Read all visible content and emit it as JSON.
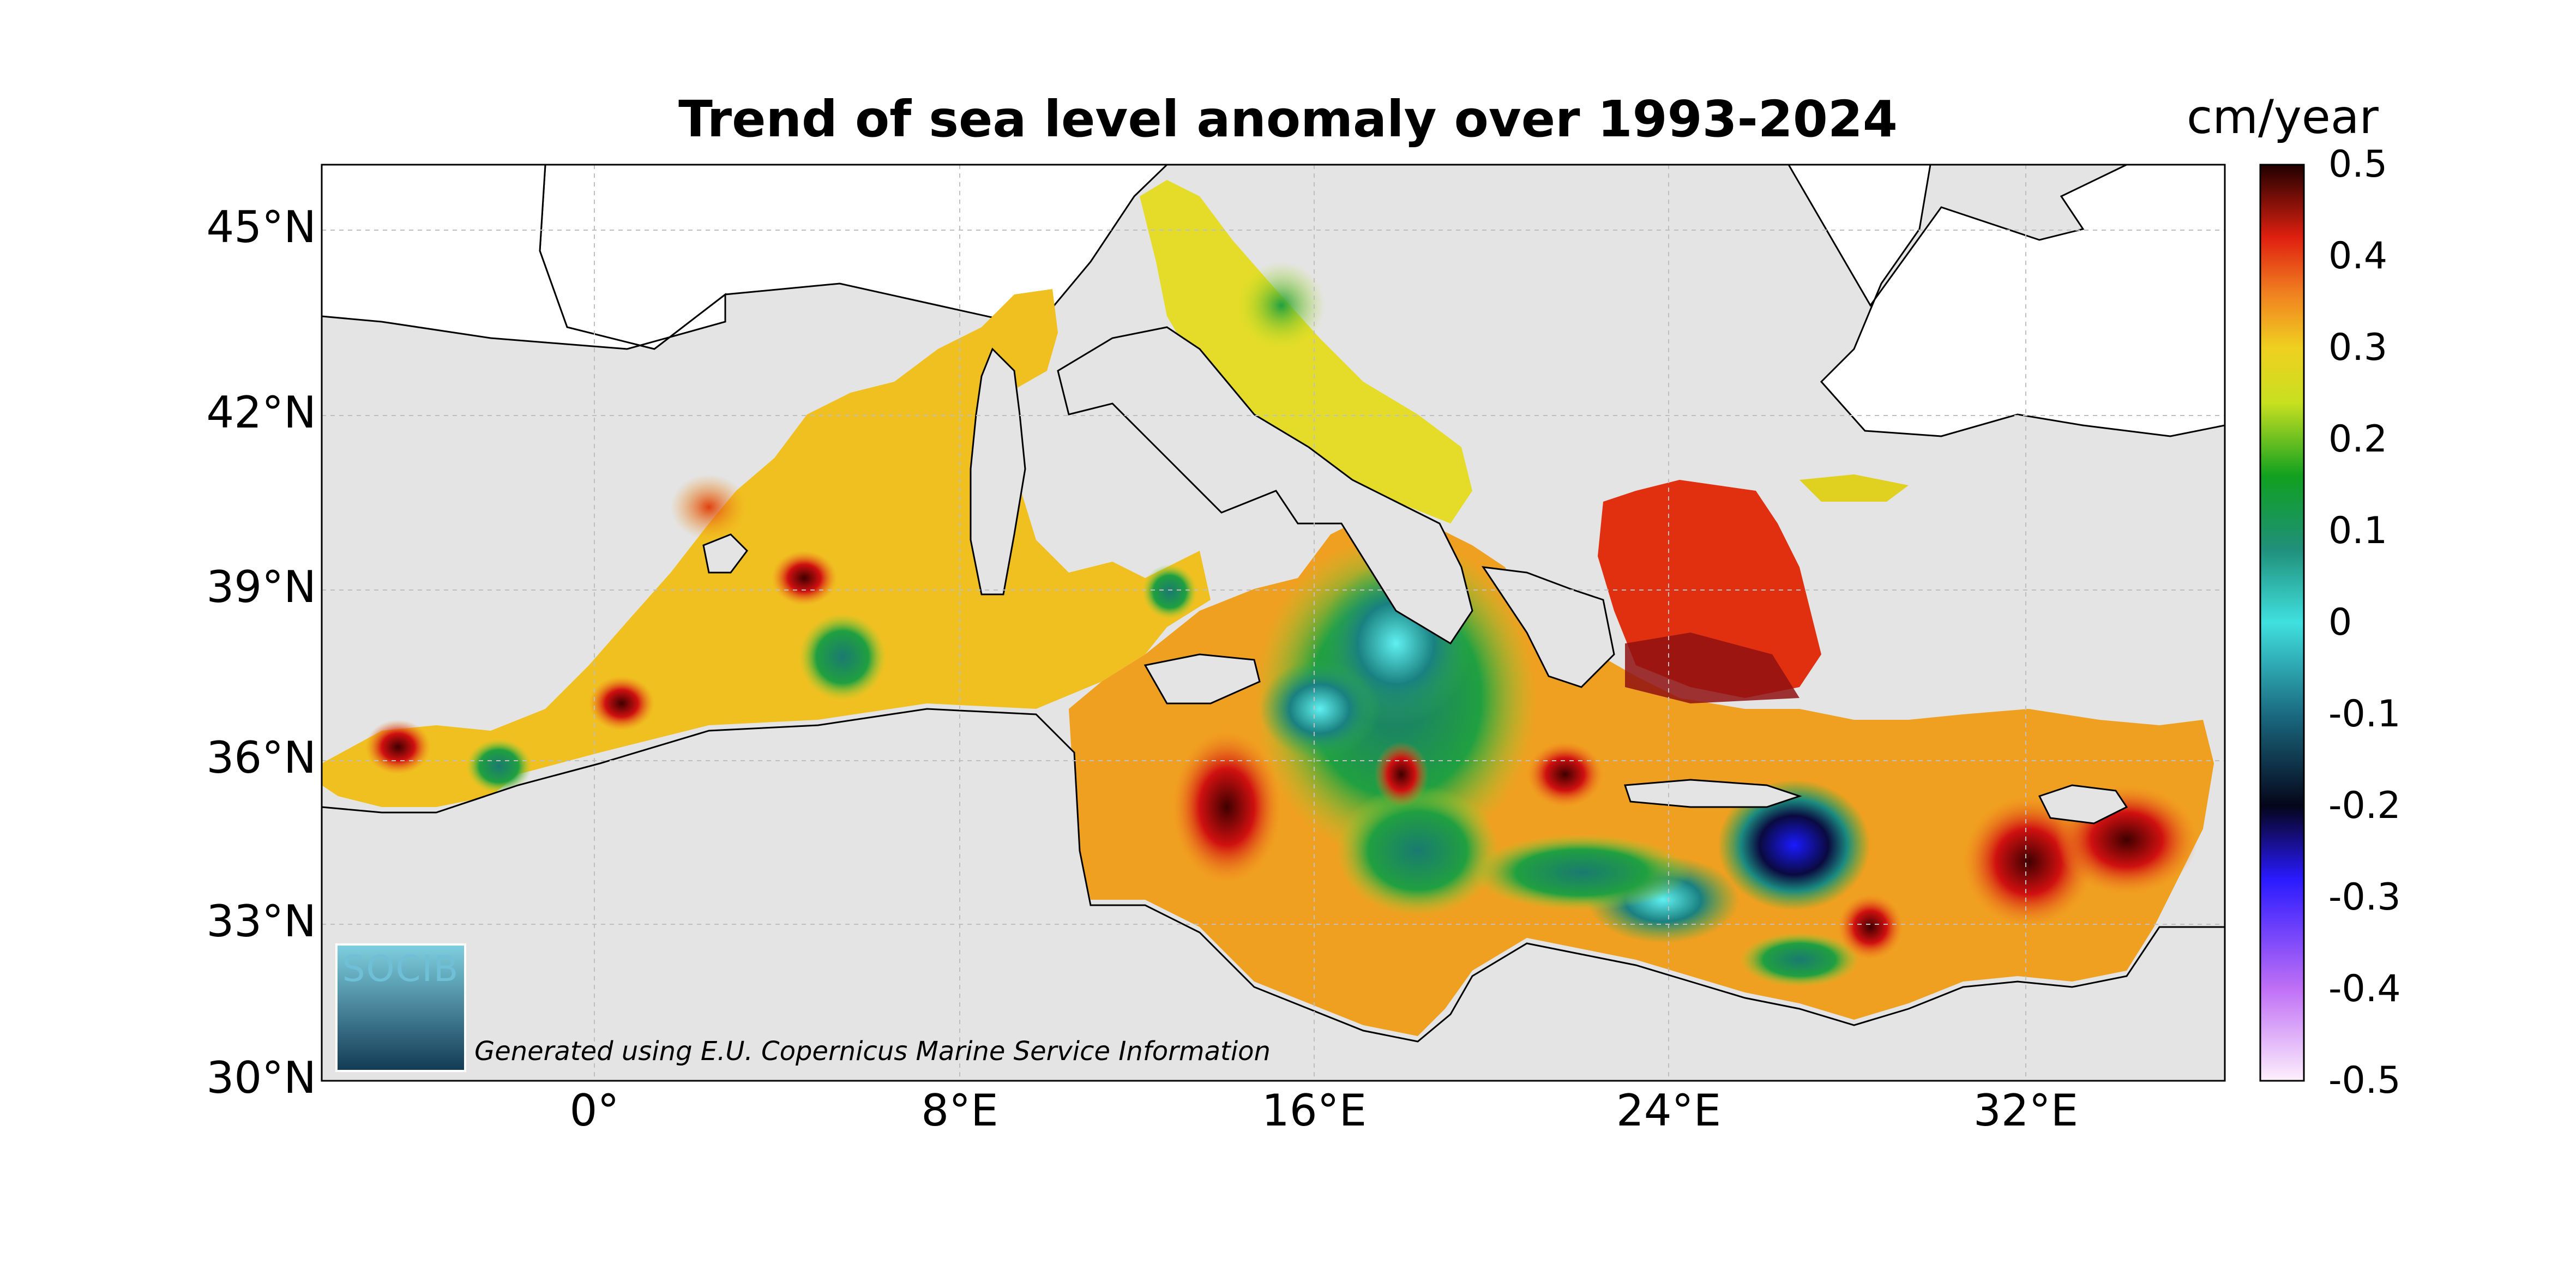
{
  "title": "Trend of sea level anomaly over 1993-2024",
  "colorbar": {
    "unit": "cm/year",
    "ticks": [
      "0.5",
      "0.4",
      "0.3",
      "0.2",
      "0.1",
      "0",
      "-0.1",
      "-0.2",
      "-0.3",
      "-0.4",
      "-0.5"
    ],
    "range": [
      -0.5,
      0.5
    ],
    "colors": [
      "#fdf0fd",
      "#a020f0",
      "#2020ff",
      "#0a0a30",
      "#1a7a8a",
      "#40e0e0",
      "#1a8070",
      "#20b020",
      "#e0e020",
      "#f0a020",
      "#e02010",
      "#300000"
    ]
  },
  "axes": {
    "lat_ticks": [
      "45°N",
      "42°N",
      "39°N",
      "36°N",
      "33°N",
      "30°N"
    ],
    "lon_ticks": [
      "0°",
      "8°E",
      "16°E",
      "24°E",
      "32°E"
    ],
    "lat_range": [
      30,
      46
    ],
    "lon_range": [
      -6,
      36.5
    ],
    "grid": true
  },
  "logo": {
    "text": "SOCIB"
  },
  "credit": "Generated using E.U. Copernicus Marine Service Information",
  "colors": {
    "land": "#ffffff",
    "background": "#e4e4e4",
    "coast": "#000000"
  }
}
